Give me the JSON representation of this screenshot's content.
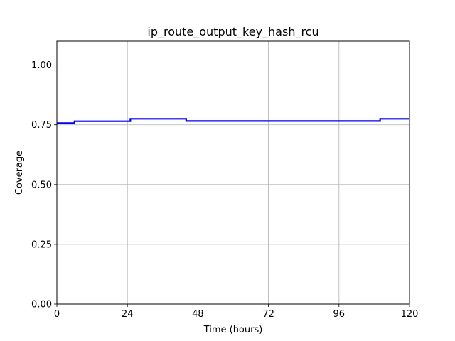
{
  "chart_data": {
    "type": "line",
    "title": "ip_route_output_key_hash_rcu",
    "xlabel": "Time (hours)",
    "ylabel": "Coverage",
    "xlim": [
      0,
      120
    ],
    "ylim": [
      0,
      1.1
    ],
    "xticks": [
      0,
      24,
      48,
      72,
      96,
      120
    ],
    "xtick_labels": [
      "0",
      "24",
      "48",
      "72",
      "96",
      "120"
    ],
    "yticks": [
      0,
      0.25,
      0.5,
      0.75,
      1.0
    ],
    "ytick_labels": [
      "0.00",
      "0.25",
      "0.50",
      "0.75",
      "1.00"
    ],
    "grid": true,
    "series": [
      {
        "color": "#0000ee",
        "step": true,
        "x": [
          0,
          6,
          25,
          44,
          110,
          120
        ],
        "y": [
          0.757,
          0.765,
          0.775,
          0.766,
          0.775,
          0.775
        ]
      }
    ]
  }
}
